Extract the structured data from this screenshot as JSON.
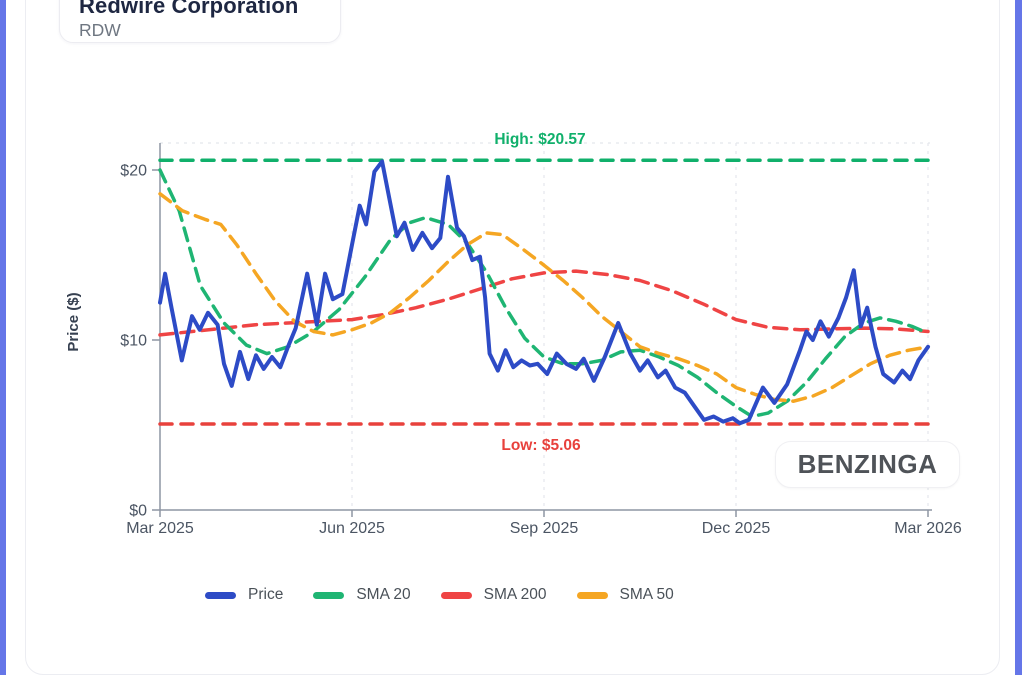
{
  "page": {
    "background": "#ffffff",
    "edge_stripe_color": "#6576e8"
  },
  "header": {
    "title": "Redwire Corporation",
    "symbol": "RDW"
  },
  "watermark": {
    "label": "BENZINGA"
  },
  "legend": {
    "items": [
      {
        "label": "Price",
        "color": "#2d4bc6"
      },
      {
        "label": "SMA 20",
        "color": "#1fb573"
      },
      {
        "label": "SMA 200",
        "color": "#ef4444"
      },
      {
        "label": "SMA 50",
        "color": "#f5a623"
      }
    ]
  },
  "chart_data": {
    "type": "line",
    "title": "Redwire Corporation",
    "subtitle": "RDW",
    "xlabel": "",
    "ylabel": "Price ($)",
    "x_unit": "months since Mar 2025",
    "x_range": [
      0,
      12
    ],
    "ylim": [
      0,
      21.6
    ],
    "grid": "vertical-dashed",
    "legend_position": "bottom",
    "x_ticks": [
      {
        "t": 0,
        "label": "Mar 2025"
      },
      {
        "t": 3,
        "label": "Jun 2025"
      },
      {
        "t": 6,
        "label": "Sep 2025"
      },
      {
        "t": 9,
        "label": "Dec 2025"
      },
      {
        "t": 12,
        "label": "Mar 2026"
      }
    ],
    "y_ticks": [
      {
        "value": 0,
        "label": "$0"
      },
      {
        "value": 10,
        "label": "$10"
      },
      {
        "value": 20,
        "label": "$20"
      }
    ],
    "high": {
      "label": "High: $20.57",
      "value": 20.57,
      "color": "#10b06b"
    },
    "low": {
      "label": "Low: $5.06",
      "value": 5.06,
      "color": "#e8413c"
    },
    "series": [
      {
        "name": "SMA 200",
        "color": "#ef4444",
        "dashed": true,
        "width": 3.5,
        "points": [
          [
            0,
            10.3
          ],
          [
            0.5,
            10.5
          ],
          [
            1,
            10.7
          ],
          [
            1.5,
            10.9
          ],
          [
            2,
            11.0
          ],
          [
            2.5,
            11.1
          ],
          [
            3,
            11.2
          ],
          [
            3.5,
            11.5
          ],
          [
            4,
            11.9
          ],
          [
            4.5,
            12.4
          ],
          [
            5,
            13.0
          ],
          [
            5.5,
            13.6
          ],
          [
            6,
            13.95
          ],
          [
            6.5,
            14.05
          ],
          [
            7,
            13.85
          ],
          [
            7.5,
            13.5
          ],
          [
            8,
            12.9
          ],
          [
            8.5,
            12.1
          ],
          [
            9,
            11.2
          ],
          [
            9.5,
            10.75
          ],
          [
            10,
            10.6
          ],
          [
            10.5,
            10.65
          ],
          [
            11,
            10.7
          ],
          [
            11.5,
            10.65
          ],
          [
            12,
            10.5
          ]
        ]
      },
      {
        "name": "SMA 20",
        "color": "#1fb573",
        "dashed": true,
        "width": 3.5,
        "points": [
          [
            0,
            20.0
          ],
          [
            0.3,
            17.6
          ],
          [
            0.63,
            13.2
          ],
          [
            1,
            11.0
          ],
          [
            1.35,
            9.7
          ],
          [
            1.67,
            9.2
          ],
          [
            2,
            9.6
          ],
          [
            2.4,
            10.5
          ],
          [
            2.8,
            11.8
          ],
          [
            3.2,
            13.7
          ],
          [
            3.6,
            15.9
          ],
          [
            3.9,
            16.9
          ],
          [
            4.15,
            17.2
          ],
          [
            4.5,
            16.8
          ],
          [
            4.8,
            15.7
          ],
          [
            5.1,
            14.0
          ],
          [
            5.4,
            11.9
          ],
          [
            5.7,
            10.1
          ],
          [
            6,
            9.0
          ],
          [
            6.3,
            8.6
          ],
          [
            6.6,
            8.6
          ],
          [
            6.9,
            8.8
          ],
          [
            7.2,
            9.3
          ],
          [
            7.5,
            9.4
          ],
          [
            7.8,
            9.0
          ],
          [
            8.1,
            8.5
          ],
          [
            8.4,
            7.8
          ],
          [
            8.7,
            6.9
          ],
          [
            9,
            6.1
          ],
          [
            9.25,
            5.5
          ],
          [
            9.5,
            5.7
          ],
          [
            9.8,
            6.4
          ],
          [
            10.1,
            7.5
          ],
          [
            10.4,
            8.9
          ],
          [
            10.7,
            10.2
          ],
          [
            11,
            11.0
          ],
          [
            11.25,
            11.3
          ],
          [
            11.5,
            11.1
          ],
          [
            11.75,
            10.8
          ],
          [
            12,
            10.4
          ]
        ]
      },
      {
        "name": "SMA 50",
        "color": "#f5a623",
        "dashed": true,
        "width": 3.5,
        "points": [
          [
            0,
            18.6
          ],
          [
            0.35,
            17.6
          ],
          [
            0.7,
            17.1
          ],
          [
            0.95,
            16.8
          ],
          [
            1.2,
            15.6
          ],
          [
            1.5,
            13.9
          ],
          [
            1.8,
            12.3
          ],
          [
            2.1,
            11.1
          ],
          [
            2.4,
            10.5
          ],
          [
            2.7,
            10.3
          ],
          [
            3,
            10.6
          ],
          [
            3.3,
            11.0
          ],
          [
            3.6,
            11.6
          ],
          [
            3.9,
            12.5
          ],
          [
            4.2,
            13.5
          ],
          [
            4.5,
            14.6
          ],
          [
            4.8,
            15.6
          ],
          [
            5.1,
            16.3
          ],
          [
            5.35,
            16.2
          ],
          [
            5.65,
            15.4
          ],
          [
            6,
            14.4
          ],
          [
            6.3,
            13.5
          ],
          [
            6.6,
            12.5
          ],
          [
            6.9,
            11.4
          ],
          [
            7.2,
            10.5
          ],
          [
            7.5,
            9.6
          ],
          [
            7.8,
            9.2
          ],
          [
            8.1,
            8.9
          ],
          [
            8.4,
            8.5
          ],
          [
            8.7,
            8.0
          ],
          [
            9,
            7.2
          ],
          [
            9.3,
            6.8
          ],
          [
            9.6,
            6.5
          ],
          [
            9.9,
            6.4
          ],
          [
            10.2,
            6.7
          ],
          [
            10.5,
            7.2
          ],
          [
            10.8,
            7.9
          ],
          [
            11.1,
            8.6
          ],
          [
            11.4,
            9.1
          ],
          [
            11.7,
            9.4
          ],
          [
            12,
            9.6
          ]
        ]
      },
      {
        "name": "Price",
        "color": "#2d4bc6",
        "dashed": false,
        "width": 4,
        "points": [
          [
            0,
            12.2
          ],
          [
            0.08,
            13.9
          ],
          [
            0.18,
            11.9
          ],
          [
            0.34,
            8.8
          ],
          [
            0.5,
            11.4
          ],
          [
            0.62,
            10.6
          ],
          [
            0.75,
            11.6
          ],
          [
            0.9,
            10.9
          ],
          [
            1,
            8.6
          ],
          [
            1.12,
            7.3
          ],
          [
            1.25,
            9.3
          ],
          [
            1.38,
            7.7
          ],
          [
            1.5,
            9.1
          ],
          [
            1.62,
            8.3
          ],
          [
            1.75,
            9.0
          ],
          [
            1.88,
            8.4
          ],
          [
            2,
            9.6
          ],
          [
            2.12,
            10.7
          ],
          [
            2.3,
            13.9
          ],
          [
            2.45,
            10.9
          ],
          [
            2.58,
            13.9
          ],
          [
            2.7,
            12.4
          ],
          [
            2.85,
            12.7
          ],
          [
            3,
            15.6
          ],
          [
            3.12,
            17.9
          ],
          [
            3.22,
            16.8
          ],
          [
            3.35,
            19.9
          ],
          [
            3.47,
            20.5
          ],
          [
            3.58,
            18.4
          ],
          [
            3.7,
            16.1
          ],
          [
            3.82,
            16.9
          ],
          [
            3.95,
            15.3
          ],
          [
            4.1,
            16.3
          ],
          [
            4.25,
            15.4
          ],
          [
            4.38,
            16.0
          ],
          [
            4.5,
            19.6
          ],
          [
            4.64,
            16.6
          ],
          [
            4.75,
            16.1
          ],
          [
            4.88,
            14.7
          ],
          [
            5,
            14.9
          ],
          [
            5.08,
            12.5
          ],
          [
            5.15,
            9.2
          ],
          [
            5.28,
            8.2
          ],
          [
            5.4,
            9.4
          ],
          [
            5.52,
            8.4
          ],
          [
            5.65,
            8.8
          ],
          [
            5.78,
            8.5
          ],
          [
            5.9,
            8.6
          ],
          [
            6.05,
            8.0
          ],
          [
            6.2,
            9.2
          ],
          [
            6.35,
            8.6
          ],
          [
            6.5,
            8.3
          ],
          [
            6.62,
            8.9
          ],
          [
            6.78,
            7.6
          ],
          [
            6.95,
            9.0
          ],
          [
            7.16,
            11.0
          ],
          [
            7.35,
            9.2
          ],
          [
            7.5,
            8.2
          ],
          [
            7.62,
            8.8
          ],
          [
            7.78,
            7.8
          ],
          [
            7.9,
            8.2
          ],
          [
            8.05,
            7.2
          ],
          [
            8.2,
            6.9
          ],
          [
            8.35,
            6.1
          ],
          [
            8.5,
            5.3
          ],
          [
            8.65,
            5.5
          ],
          [
            8.8,
            5.2
          ],
          [
            8.95,
            5.4
          ],
          [
            9.06,
            5.1
          ],
          [
            9.2,
            5.3
          ],
          [
            9.42,
            7.2
          ],
          [
            9.6,
            6.3
          ],
          [
            9.8,
            7.4
          ],
          [
            10,
            9.4
          ],
          [
            10.1,
            10.5
          ],
          [
            10.2,
            10.0
          ],
          [
            10.32,
            11.1
          ],
          [
            10.45,
            10.2
          ],
          [
            10.6,
            11.3
          ],
          [
            10.72,
            12.5
          ],
          [
            10.84,
            14.1
          ],
          [
            10.95,
            10.8
          ],
          [
            11.05,
            11.9
          ],
          [
            11.18,
            9.6
          ],
          [
            11.3,
            8.0
          ],
          [
            11.47,
            7.5
          ],
          [
            11.6,
            8.2
          ],
          [
            11.72,
            7.7
          ],
          [
            11.85,
            8.8
          ],
          [
            12,
            9.6
          ]
        ]
      }
    ]
  }
}
